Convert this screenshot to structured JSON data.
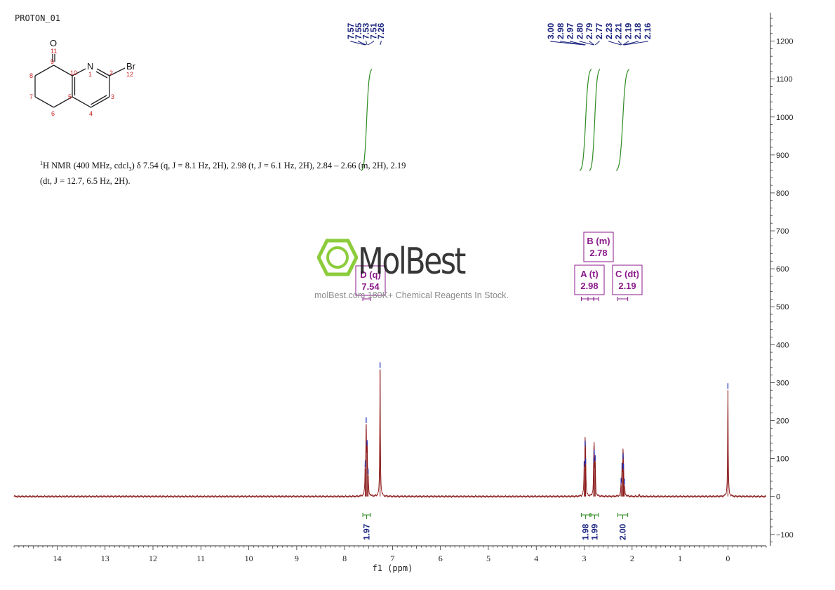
{
  "experiment_name": "PROTON_01",
  "nmr_summary_line1_prefix": "H NMR (400 MHz, cdcl",
  "nmr_summary_line1_rest": ") δ 7.54 (q, J = 8.1 Hz, 2H), 2.98 (t, J = 6.1 Hz, 2H), 2.84 – 2.66 (m, 2H), 2.19",
  "nmr_summary_line2": "(dt, J = 12.7, 6.5 Hz, 2H).",
  "watermark": {
    "brand": "MolBest",
    "subtitle": "molBest.com 180K+ Chemical Reagents In Stock.",
    "accent_color": "#8ccc3c"
  },
  "molecule": {
    "atoms": [
      "O",
      "N",
      "Br"
    ],
    "numbers": [
      "11",
      "9",
      "8",
      "7",
      "6",
      "5",
      "10",
      "1",
      "2",
      "12",
      "3",
      "4"
    ]
  },
  "chart_data": {
    "type": "line",
    "xlabel": "f1 (ppm)",
    "x_ticks": [
      14,
      13,
      12,
      11,
      10,
      9,
      8,
      7,
      6,
      5,
      4,
      3,
      2,
      1,
      0
    ],
    "xlim": [
      14.9,
      -0.8
    ],
    "y_ticks": [
      -100,
      0,
      100,
      200,
      300,
      400,
      500,
      600,
      700,
      800,
      900,
      1000,
      1100,
      1200
    ],
    "ylim": [
      -130,
      1275
    ],
    "axis_position": "right",
    "spectrum_color": "#8b1a1a",
    "peaks": [
      {
        "ppm": 7.57,
        "height": 74
      },
      {
        "ppm": 7.55,
        "height": 190
      },
      {
        "ppm": 7.53,
        "height": 130
      },
      {
        "ppm": 7.51,
        "height": 55
      },
      {
        "ppm": 7.26,
        "height": 335
      },
      {
        "ppm": 3.0,
        "height": 75
      },
      {
        "ppm": 2.98,
        "height": 128
      },
      {
        "ppm": 2.97,
        "height": 82
      },
      {
        "ppm": 2.8,
        "height": 85
      },
      {
        "ppm": 2.79,
        "height": 105
      },
      {
        "ppm": 2.77,
        "height": 90
      },
      {
        "ppm": 2.23,
        "height": 30
      },
      {
        "ppm": 2.21,
        "height": 70
      },
      {
        "ppm": 2.19,
        "height": 95
      },
      {
        "ppm": 2.18,
        "height": 68
      },
      {
        "ppm": 2.16,
        "height": 28
      },
      {
        "ppm": 1.85,
        "height": 6
      },
      {
        "ppm": 0.0,
        "height": 280
      }
    ],
    "peak_labels": {
      "group1": [
        "7.57",
        "7.55",
        "7.53",
        "7.51",
        "7.26"
      ],
      "group2": [
        "3.00",
        "2.98",
        "2.97",
        "2.80",
        "2.79",
        "2.77",
        "2.23",
        "2.21",
        "2.19",
        "2.18",
        "2.16"
      ]
    },
    "integrals": [
      {
        "value": "1.97",
        "from": 7.62,
        "to": 7.46
      },
      {
        "value": "1.98",
        "from": 3.06,
        "to": 2.88
      },
      {
        "value": "1.99",
        "from": 2.86,
        "to": 2.7
      },
      {
        "value": "2.00",
        "from": 2.3,
        "to": 2.09
      }
    ],
    "multiplets": [
      {
        "letter_text": "D (q)",
        "value": "7.54",
        "ppm": 7.54
      },
      {
        "letter_text": "A (t)",
        "value": "2.98",
        "ppm": 2.98
      },
      {
        "letter_text": "B (m)",
        "value": "2.78",
        "ppm": 2.78
      },
      {
        "letter_text": "C (dt)",
        "value": "2.19",
        "ppm": 2.19
      }
    ],
    "integral_color": "#2e8b22",
    "multiplet_color": "#8b1a8b",
    "label_color": "#1a237e"
  }
}
